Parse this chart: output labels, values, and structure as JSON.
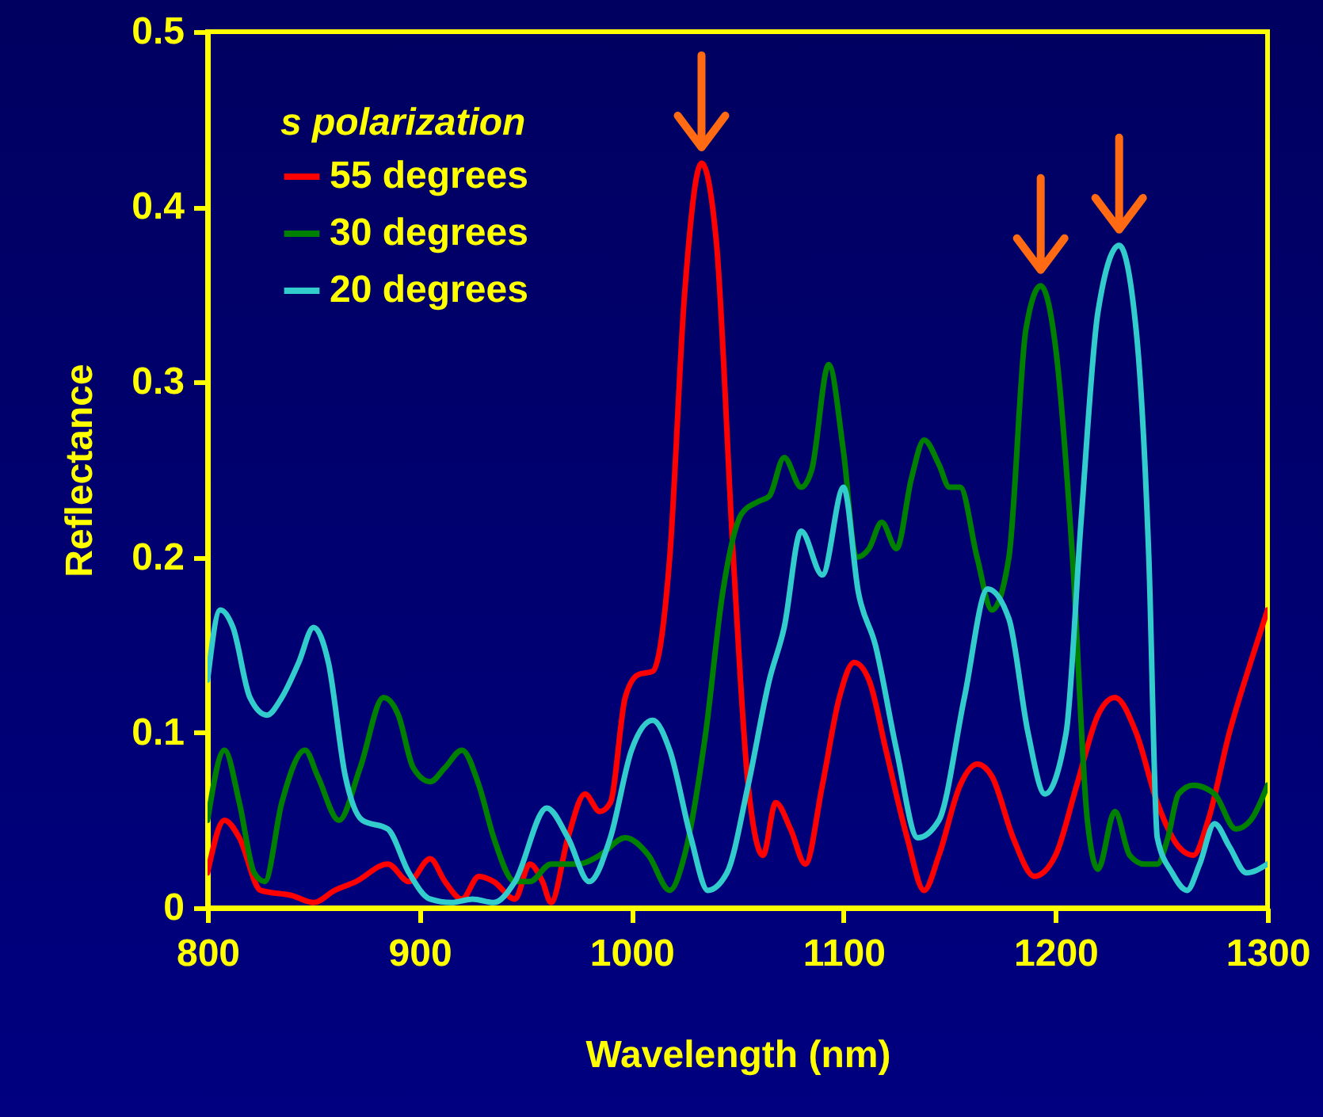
{
  "chart_data": {
    "type": "line",
    "xlabel": "Wavelength (nm)",
    "ylabel": "Reflectance",
    "legend_title": "s polarization",
    "legend": "top left",
    "grid": false,
    "line_style": "solid",
    "xlim": [
      800,
      1300
    ],
    "xticks": [
      800,
      900,
      1000,
      1100,
      1200,
      1300
    ],
    "ylim": [
      0,
      0.5
    ],
    "yticks": [
      0,
      0.1,
      0.2,
      0.3,
      0.4,
      0.5
    ],
    "series": [
      {
        "name": "55 degrees",
        "color": "#ff0000",
        "x": [
          800,
          808,
          815,
          825,
          840,
          850,
          860,
          870,
          885,
          895,
          905,
          912,
          920,
          928,
          935,
          945,
          952,
          958,
          962,
          970,
          978,
          985,
          990,
          997,
          1003,
          1010,
          1018,
          1025,
          1033,
          1040,
          1048,
          1055,
          1062,
          1068,
          1075,
          1082,
          1090,
          1098,
          1105,
          1112,
          1120,
          1130,
          1138,
          1145,
          1155,
          1163,
          1170,
          1180,
          1190,
          1200,
          1210,
          1220,
          1228,
          1238,
          1248,
          1258,
          1265,
          1272,
          1282,
          1292,
          1300
        ],
        "values": [
          0.02,
          0.05,
          0.04,
          0.01,
          0.007,
          0.003,
          0.01,
          0.015,
          0.025,
          0.015,
          0.028,
          0.015,
          0.005,
          0.018,
          0.015,
          0.005,
          0.025,
          0.015,
          0.003,
          0.04,
          0.065,
          0.055,
          0.06,
          0.12,
          0.133,
          0.135,
          0.2,
          0.35,
          0.425,
          0.38,
          0.2,
          0.07,
          0.03,
          0.06,
          0.045,
          0.025,
          0.07,
          0.12,
          0.14,
          0.13,
          0.09,
          0.04,
          0.01,
          0.03,
          0.07,
          0.082,
          0.075,
          0.04,
          0.018,
          0.03,
          0.07,
          0.11,
          0.12,
          0.1,
          0.06,
          0.035,
          0.03,
          0.05,
          0.1,
          0.14,
          0.17
        ]
      },
      {
        "name": "30 degrees",
        "color": "#008000",
        "x": [
          800,
          808,
          815,
          822,
          827,
          835,
          846,
          852,
          862,
          872,
          883,
          890,
          897,
          905,
          912,
          920,
          928,
          935,
          945,
          952,
          962,
          975,
          985,
          997,
          1008,
          1018,
          1025,
          1035,
          1043,
          1052,
          1060,
          1065,
          1072,
          1080,
          1085,
          1093,
          1100,
          1106,
          1112,
          1118,
          1125,
          1132,
          1138,
          1145,
          1150,
          1155,
          1163,
          1170,
          1178,
          1186,
          1193,
          1200,
          1208,
          1215,
          1220,
          1228,
          1235,
          1242,
          1248,
          1253,
          1258,
          1265,
          1275,
          1285,
          1292,
          1300
        ],
        "values": [
          0.05,
          0.09,
          0.06,
          0.02,
          0.015,
          0.06,
          0.09,
          0.075,
          0.05,
          0.08,
          0.12,
          0.11,
          0.08,
          0.072,
          0.08,
          0.09,
          0.07,
          0.04,
          0.015,
          0.015,
          0.025,
          0.025,
          0.03,
          0.04,
          0.03,
          0.01,
          0.03,
          0.1,
          0.18,
          0.225,
          0.232,
          0.235,
          0.257,
          0.24,
          0.25,
          0.31,
          0.26,
          0.2,
          0.205,
          0.22,
          0.205,
          0.245,
          0.267,
          0.253,
          0.24,
          0.24,
          0.2,
          0.17,
          0.2,
          0.33,
          0.355,
          0.32,
          0.2,
          0.05,
          0.022,
          0.055,
          0.03,
          0.025,
          0.025,
          0.04,
          0.065,
          0.07,
          0.065,
          0.045,
          0.05,
          0.07
        ]
      },
      {
        "name": "20 degrees",
        "color": "#33cccc",
        "x": [
          800,
          806,
          812,
          820,
          828,
          835,
          843,
          850,
          857,
          865,
          873,
          885,
          895,
          905,
          915,
          925,
          935,
          945,
          960,
          970,
          980,
          990,
          1000,
          1010,
          1018,
          1028,
          1036,
          1045,
          1055,
          1065,
          1072,
          1080,
          1090,
          1100,
          1107,
          1115,
          1125,
          1135,
          1145,
          1157,
          1168,
          1178,
          1187,
          1195,
          1205,
          1212,
          1220,
          1230,
          1238,
          1244,
          1248,
          1255,
          1262,
          1268,
          1275,
          1282,
          1290,
          1300
        ],
        "values": [
          0.13,
          0.17,
          0.16,
          0.12,
          0.11,
          0.12,
          0.14,
          0.16,
          0.14,
          0.075,
          0.05,
          0.045,
          0.02,
          0.005,
          0.003,
          0.005,
          0.003,
          0.015,
          0.057,
          0.04,
          0.015,
          0.04,
          0.09,
          0.107,
          0.09,
          0.04,
          0.01,
          0.02,
          0.07,
          0.13,
          0.16,
          0.215,
          0.19,
          0.24,
          0.18,
          0.15,
          0.09,
          0.04,
          0.05,
          0.12,
          0.182,
          0.165,
          0.1,
          0.065,
          0.1,
          0.22,
          0.34,
          0.378,
          0.33,
          0.2,
          0.04,
          0.02,
          0.01,
          0.025,
          0.048,
          0.035,
          0.02,
          0.025
        ]
      }
    ]
  }
}
